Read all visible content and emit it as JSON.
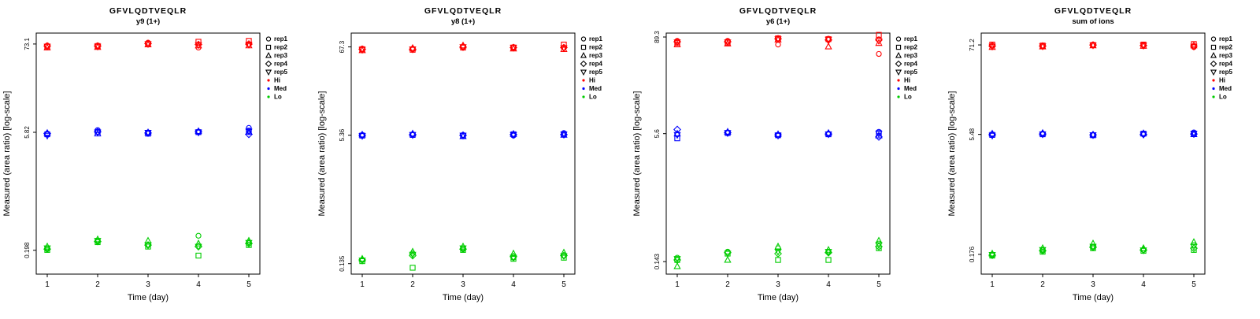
{
  "figure": {
    "xlabel": "Time (day)",
    "ylabel": "Measured (area ratio) [log-scale]",
    "x_ticks": [
      "1",
      "2",
      "3",
      "4",
      "5"
    ],
    "legend": {
      "reps": [
        {
          "label": "rep1",
          "marker": "circle"
        },
        {
          "label": "rep2",
          "marker": "square"
        },
        {
          "label": "rep3",
          "marker": "triangle-up"
        },
        {
          "label": "rep4",
          "marker": "diamond"
        },
        {
          "label": "rep5",
          "marker": "triangle-down"
        }
      ],
      "levels": [
        {
          "label": "Hi",
          "color": "#FF0000"
        },
        {
          "label": "Med",
          "color": "#0000FF"
        },
        {
          "label": "Lo",
          "color": "#00CD00"
        }
      ]
    },
    "colors": {
      "hi": "#FF0000",
      "med": "#0000FF",
      "lo": "#00CD00",
      "axis": "#000000"
    }
  },
  "chart_data": [
    {
      "type": "scatter",
      "title": "GFVLQDTVEQLR",
      "subtitle": "y9 (1+)",
      "xlabel": "Time (day)",
      "ylabel": "Measured (area ratio) [log-scale]",
      "x": [
        1,
        2,
        3,
        4,
        5
      ],
      "yscale": "log",
      "ylim": [
        0.1,
        100
      ],
      "yticks": [
        "73.1",
        "5.82",
        "0.198"
      ],
      "ytick_values": [
        73.1,
        5.82,
        0.198
      ],
      "groups": [
        {
          "level": "Hi",
          "color": "#FF0000",
          "values_by_day": [
            [
              70,
              68,
              66,
              69,
              68
            ],
            [
              70,
              69,
              67,
              69,
              68
            ],
            [
              76,
              73,
              72,
              74,
              73
            ],
            [
              66,
              78,
              70,
              72,
              71
            ],
            [
              72,
              80,
              70,
              73,
              72
            ]
          ]
        },
        {
          "level": "Med",
          "color": "#0000FF",
          "values_by_day": [
            [
              5.6,
              5.5,
              5.7,
              5.6,
              5.3
            ],
            [
              6.2,
              5.9,
              5.6,
              5.9,
              5.8
            ],
            [
              5.8,
              5.6,
              5.8,
              5.7,
              5.75
            ],
            [
              5.9,
              5.85,
              6.0,
              5.9,
              5.8
            ],
            [
              6.6,
              6.1,
              5.9,
              5.5,
              5.95
            ]
          ]
        },
        {
          "level": "Lo",
          "color": "#00CD00",
          "values_by_day": [
            [
              0.21,
              0.2,
              0.22,
              0.205,
              0.21
            ],
            [
              0.26,
              0.25,
              0.27,
              0.255,
              0.26
            ],
            [
              0.23,
              0.22,
              0.26,
              0.23,
              0.23
            ],
            [
              0.3,
              0.17,
              0.24,
              0.22,
              0.22
            ],
            [
              0.25,
              0.23,
              0.26,
              0.24,
              0.245
            ]
          ]
        }
      ]
    },
    {
      "type": "scatter",
      "title": "GFVLQDTVEQLR",
      "subtitle": "y8 (1+)",
      "xlabel": "Time (day)",
      "ylabel": "Measured (area ratio) [log-scale]",
      "x": [
        1,
        2,
        3,
        4,
        5
      ],
      "yscale": "log",
      "ylim": [
        0.1,
        100
      ],
      "yticks": [
        "67.3",
        "5.36",
        "0.135"
      ],
      "ytick_values": [
        67.3,
        5.36,
        0.135
      ],
      "groups": [
        {
          "level": "Hi",
          "color": "#FF0000",
          "values_by_day": [
            [
              64,
              63,
              61,
              63,
              62
            ],
            [
              64,
              62,
              65,
              63,
              63
            ],
            [
              68,
              66,
              70,
              67,
              67
            ],
            [
              67,
              66,
              64,
              66,
              66
            ],
            [
              66,
              72,
              63,
              66,
              65
            ]
          ]
        },
        {
          "level": "Med",
          "color": "#0000FF",
          "values_by_day": [
            [
              5.4,
              5.3,
              5.45,
              5.35,
              5.25
            ],
            [
              5.5,
              5.4,
              5.6,
              5.45,
              5.4
            ],
            [
              5.4,
              5.3,
              5.2,
              5.35,
              5.3
            ],
            [
              5.3,
              5.5,
              5.55,
              5.45,
              5.4
            ],
            [
              5.7,
              5.5,
              5.4,
              5.45,
              5.5
            ]
          ]
        },
        {
          "level": "Lo",
          "color": "#00CD00",
          "values_by_day": [
            [
              0.15,
              0.145,
              0.155,
              0.15,
              0.148
            ],
            [
              0.18,
              0.12,
              0.19,
              0.17,
              0.175
            ],
            [
              0.21,
              0.2,
              0.22,
              0.205,
              0.21
            ],
            [
              0.16,
              0.155,
              0.18,
              0.165,
              0.16
            ],
            [
              0.17,
              0.16,
              0.185,
              0.17,
              0.168
            ]
          ]
        }
      ]
    },
    {
      "type": "scatter",
      "title": "GFVLQDTVEQLR",
      "subtitle": "y6 (1+)",
      "xlabel": "Time (day)",
      "ylabel": "Measured (area ratio) [log-scale]",
      "x": [
        1,
        2,
        3,
        4,
        5
      ],
      "yscale": "log",
      "ylim": [
        0.1,
        100
      ],
      "yticks": [
        "89.3",
        "5.6",
        "0.143"
      ],
      "ytick_values": [
        89.3,
        5.6,
        0.143
      ],
      "groups": [
        {
          "level": "Hi",
          "color": "#FF0000",
          "values_by_day": [
            [
              80,
              75,
              72,
              78,
              77
            ],
            [
              80,
              76,
              74,
              78,
              77
            ],
            [
              72,
              86,
              83,
              85,
              84
            ],
            [
              85,
              84,
              68,
              82,
              83
            ],
            [
              55,
              95,
              75,
              82,
              80
            ]
          ]
        },
        {
          "level": "Med",
          "color": "#0000FF",
          "values_by_day": [
            [
              5.5,
              4.9,
              5.6,
              6.3,
              5.4
            ],
            [
              5.8,
              5.7,
              5.9,
              5.75,
              5.7
            ],
            [
              5.3,
              5.35,
              5.5,
              5.4,
              5.3
            ],
            [
              5.6,
              5.5,
              5.7,
              5.55,
              5.5
            ],
            [
              5.9,
              5.7,
              5.3,
              5.1,
              5.6
            ]
          ]
        },
        {
          "level": "Lo",
          "color": "#00CD00",
          "values_by_day": [
            [
              0.16,
              0.15,
              0.125,
              0.15,
              0.155
            ],
            [
              0.19,
              0.18,
              0.15,
              0.185,
              0.18
            ],
            [
              0.21,
              0.15,
              0.22,
              0.18,
              0.19
            ],
            [
              0.19,
              0.15,
              0.2,
              0.185,
              0.19
            ],
            [
              0.24,
              0.21,
              0.26,
              0.22,
              0.23
            ]
          ]
        }
      ]
    },
    {
      "type": "scatter",
      "title": "GFVLQDTVEQLR",
      "subtitle": "sum of ions",
      "xlabel": "Time (day)",
      "ylabel": "Measured (area ratio) [log-scale]",
      "x": [
        1,
        2,
        3,
        4,
        5
      ],
      "yscale": "log",
      "ylim": [
        0.1,
        100
      ],
      "yticks": [
        "71.2",
        "5.48",
        "0.176"
      ],
      "ytick_values": [
        71.2,
        5.48,
        0.176
      ],
      "groups": [
        {
          "level": "Hi",
          "color": "#FF0000",
          "values_by_day": [
            [
              70,
              72,
              67,
              69,
              68
            ],
            [
              69,
              70,
              68,
              69,
              68.5
            ],
            [
              72,
              71,
              70,
              71,
              70.5
            ],
            [
              71,
              72,
              69,
              70,
              70
            ],
            [
              67,
              73,
              70,
              69,
              68
            ]
          ]
        },
        {
          "level": "Med",
          "color": "#0000FF",
          "values_by_day": [
            [
              5.5,
              5.4,
              5.6,
              5.45,
              5.3
            ],
            [
              5.6,
              5.5,
              5.7,
              5.55,
              5.5
            ],
            [
              5.4,
              5.35,
              5.45,
              5.4,
              5.38
            ],
            [
              5.5,
              5.6,
              5.65,
              5.5,
              5.45
            ],
            [
              5.8,
              5.6,
              5.5,
              5.55,
              5.6
            ]
          ]
        },
        {
          "level": "Lo",
          "color": "#00CD00",
          "values_by_day": [
            [
              0.175,
              0.17,
              0.18,
              0.172,
              0.174
            ],
            [
              0.2,
              0.19,
              0.21,
              0.195,
              0.2
            ],
            [
              0.22,
              0.21,
              0.24,
              0.215,
              0.22
            ],
            [
              0.2,
              0.195,
              0.21,
              0.2,
              0.198
            ],
            [
              0.23,
              0.2,
              0.25,
              0.21,
              0.22
            ]
          ]
        }
      ]
    }
  ]
}
